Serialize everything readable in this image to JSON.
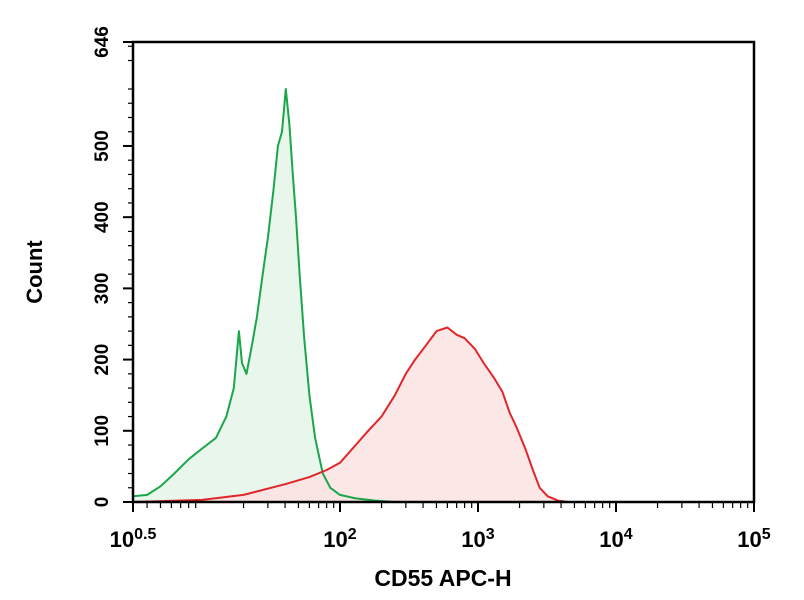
{
  "chart_data": {
    "type": "area",
    "xlabel": "CD55 APC-H",
    "ylabel": "Count",
    "x_scale": "log",
    "xlim": [
      3.162,
      100000
    ],
    "ylim": [
      0,
      646
    ],
    "grid": false,
    "x_ticks": [
      {
        "value": 3.162,
        "base": "10",
        "exp": "0.5"
      },
      {
        "value": 100,
        "base": "10",
        "exp": "2"
      },
      {
        "value": 1000,
        "base": "10",
        "exp": "3"
      },
      {
        "value": 10000,
        "base": "10",
        "exp": "4"
      },
      {
        "value": 100000,
        "base": "10",
        "exp": "5"
      }
    ],
    "y_ticks": [
      {
        "value": 0,
        "label": "0"
      },
      {
        "value": 100,
        "label": "100"
      },
      {
        "value": 200,
        "label": "200"
      },
      {
        "value": 300,
        "label": "300"
      },
      {
        "value": 400,
        "label": "400"
      },
      {
        "value": 500,
        "label": "500"
      },
      {
        "value": 646,
        "label": "646"
      }
    ],
    "series": [
      {
        "color": "#1aa64a",
        "fill": "#e4f5e9",
        "points": [
          [
            3.16,
            8
          ],
          [
            4.0,
            10
          ],
          [
            5.0,
            22
          ],
          [
            6.3,
            40
          ],
          [
            8.0,
            60
          ],
          [
            10.0,
            75
          ],
          [
            12.6,
            90
          ],
          [
            15.0,
            120
          ],
          [
            17.0,
            160
          ],
          [
            18.5,
            240
          ],
          [
            19.5,
            195
          ],
          [
            21.0,
            180
          ],
          [
            23.0,
            220
          ],
          [
            25.0,
            260
          ],
          [
            28.0,
            330
          ],
          [
            30.0,
            370
          ],
          [
            33.0,
            440
          ],
          [
            35.5,
            500
          ],
          [
            38.0,
            520
          ],
          [
            40.5,
            580
          ],
          [
            43.0,
            530
          ],
          [
            45.5,
            460
          ],
          [
            48.0,
            400
          ],
          [
            51.0,
            320
          ],
          [
            55.0,
            230
          ],
          [
            60.0,
            150
          ],
          [
            66.0,
            90
          ],
          [
            75.0,
            40
          ],
          [
            85.0,
            20
          ],
          [
            100.0,
            10
          ],
          [
            130.0,
            5
          ],
          [
            180.0,
            2
          ],
          [
            250.0,
            0
          ]
        ]
      },
      {
        "color": "#e0262a",
        "fill": "#fbe3e3",
        "points": [
          [
            3.16,
            0
          ],
          [
            10.0,
            3
          ],
          [
            20.0,
            10
          ],
          [
            40.0,
            25
          ],
          [
            60.0,
            35
          ],
          [
            80.0,
            45
          ],
          [
            100.0,
            55
          ],
          [
            130.0,
            80
          ],
          [
            160.0,
            100
          ],
          [
            200.0,
            120
          ],
          [
            250.0,
            150
          ],
          [
            300.0,
            180
          ],
          [
            350.0,
            200
          ],
          [
            420.0,
            220
          ],
          [
            500.0,
            240
          ],
          [
            600.0,
            245
          ],
          [
            700.0,
            235
          ],
          [
            800.0,
            230
          ],
          [
            950.0,
            215
          ],
          [
            1100.0,
            195
          ],
          [
            1300.0,
            175
          ],
          [
            1500.0,
            155
          ],
          [
            1700.0,
            125
          ],
          [
            1900.0,
            105
          ],
          [
            2200.0,
            75
          ],
          [
            2500.0,
            45
          ],
          [
            2800.0,
            20
          ],
          [
            3200.0,
            8
          ],
          [
            3800.0,
            2
          ],
          [
            4500.0,
            0
          ]
        ]
      }
    ]
  }
}
